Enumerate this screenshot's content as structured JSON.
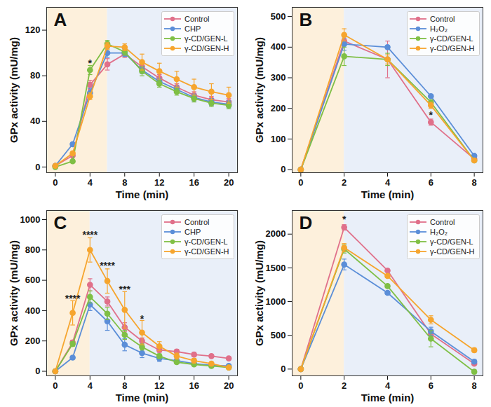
{
  "chart_data": [
    {
      "type": "line",
      "panel_label": "A",
      "x_label": "Time (min)",
      "y_label": "GPx activity (mU/mg)",
      "x": [
        0,
        2,
        4,
        6,
        8,
        10,
        12,
        14,
        16,
        18,
        20
      ],
      "xlim": [
        -1,
        21
      ],
      "xticks": [
        0,
        4,
        8,
        12,
        16,
        20
      ],
      "ylim": [
        -5,
        140
      ],
      "yticks": [
        0,
        40,
        80,
        120
      ],
      "legend": "upper right",
      "marker": "circle",
      "regions": [
        {
          "x": [
            -1,
            6
          ],
          "color": "#fdf0dc"
        },
        {
          "x": [
            6,
            21
          ],
          "color": "#e9eff9"
        }
      ],
      "series": [
        {
          "name": "Control",
          "color": "#e0708a",
          "values": [
            1,
            10,
            72,
            90,
            99,
            88,
            78,
            70,
            63,
            59,
            57
          ],
          "errors": [
            0,
            1,
            4,
            5,
            3,
            3,
            3,
            3,
            3,
            3,
            3
          ]
        },
        {
          "name": "CHP",
          "color": "#5b8ed8",
          "values": [
            1,
            20,
            65,
            100,
            100,
            85,
            75,
            68,
            61,
            57,
            55
          ],
          "errors": [
            0,
            1,
            4,
            4,
            3,
            3,
            3,
            3,
            3,
            3,
            3
          ]
        },
        {
          "name": "γ-CD/GEN-L",
          "color": "#7fbf45",
          "values": [
            0,
            5,
            85,
            108,
            101,
            84,
            73,
            66,
            60,
            56,
            54
          ],
          "errors": [
            0,
            1,
            4,
            3,
            3,
            4,
            3,
            3,
            3,
            3,
            3
          ]
        },
        {
          "name": "γ-CD/GEN-H",
          "color": "#f6a52e",
          "values": [
            1,
            12,
            62,
            106,
            105,
            92,
            84,
            77,
            70,
            66,
            63
          ],
          "errors": [
            0,
            1,
            3,
            3,
            3,
            7,
            7,
            7,
            7,
            7,
            7
          ]
        }
      ],
      "annotations": [
        {
          "x": 4,
          "y": 91,
          "text": "*"
        }
      ]
    },
    {
      "type": "line",
      "panel_label": "B",
      "x_label": "Time (min)",
      "y_label": "GPx activity (mU/mg)",
      "x": [
        0,
        2,
        4,
        6,
        8
      ],
      "xlim": [
        -0.4,
        8.4
      ],
      "xticks": [
        0,
        2,
        4,
        6,
        8
      ],
      "ylim": [
        -10,
        530
      ],
      "yticks": [
        0,
        100,
        200,
        300,
        400,
        500
      ],
      "legend": "upper right",
      "marker": "circle",
      "regions": [
        {
          "x": [
            -0.4,
            2
          ],
          "color": "#fdf0dc"
        },
        {
          "x": [
            2,
            8.4
          ],
          "color": "#e9eff9"
        }
      ],
      "series": [
        {
          "name": "Control",
          "color": "#e0708a",
          "values": [
            0,
            420,
            360,
            155,
            35
          ],
          "errors": [
            0,
            15,
            60,
            10,
            3
          ]
        },
        {
          "name": "H₂O₂",
          "color": "#5b8ed8",
          "values": [
            0,
            410,
            400,
            240,
            45
          ],
          "errors": [
            0,
            20,
            5,
            5,
            3
          ]
        },
        {
          "name": "γ-CD/GEN-L",
          "color": "#7fbf45",
          "values": [
            0,
            370,
            360,
            220,
            30
          ],
          "errors": [
            0,
            30,
            20,
            8,
            3
          ]
        },
        {
          "name": "γ-CD/GEN-H",
          "color": "#f6a52e",
          "values": [
            0,
            440,
            360,
            210,
            30
          ],
          "errors": [
            0,
            20,
            15,
            10,
            3
          ]
        }
      ],
      "annotations": [
        {
          "x": 6,
          "y": 178,
          "text": "*"
        }
      ]
    },
    {
      "type": "line",
      "panel_label": "C",
      "x_label": "Time (min)",
      "y_label": "GPx activity (mU/mg)",
      "x": [
        0,
        2,
        4,
        6,
        8,
        10,
        12,
        14,
        16,
        18,
        20
      ],
      "xlim": [
        -1,
        21
      ],
      "xticks": [
        0,
        4,
        8,
        12,
        16,
        20
      ],
      "ylim": [
        -30,
        1060
      ],
      "yticks": [
        0,
        200,
        400,
        600,
        800,
        1000
      ],
      "legend": "upper right",
      "marker": "circle",
      "regions": [
        {
          "x": [
            -1,
            4
          ],
          "color": "#fdf0dc"
        },
        {
          "x": [
            4,
            21
          ],
          "color": "#e9eff9"
        }
      ],
      "series": [
        {
          "name": "Control",
          "color": "#e0708a",
          "values": [
            0,
            190,
            570,
            460,
            290,
            200,
            140,
            130,
            110,
            100,
            85
          ],
          "errors": [
            0,
            15,
            40,
            30,
            30,
            20,
            15,
            15,
            15,
            10,
            10
          ]
        },
        {
          "name": "CHP",
          "color": "#5b8ed8",
          "values": [
            0,
            90,
            440,
            330,
            175,
            120,
            85,
            70,
            50,
            40,
            35
          ],
          "errors": [
            0,
            10,
            40,
            60,
            40,
            30,
            20,
            15,
            15,
            10,
            10
          ]
        },
        {
          "name": "γ-CD/GEN-L",
          "color": "#7fbf45",
          "values": [
            0,
            180,
            490,
            380,
            240,
            160,
            100,
            60,
            45,
            35,
            25
          ],
          "errors": [
            0,
            15,
            40,
            40,
            30,
            20,
            15,
            10,
            10,
            10,
            10
          ]
        },
        {
          "name": "γ-CD/GEN-H",
          "color": "#f6a52e",
          "values": [
            0,
            385,
            800,
            595,
            405,
            255,
            165,
            100,
            70,
            50,
            25
          ],
          "errors": [
            0,
            80,
            80,
            80,
            120,
            80,
            30,
            20,
            15,
            10,
            10
          ]
        }
      ],
      "annotations": [
        {
          "x": 2,
          "y": 480,
          "text": "****"
        },
        {
          "x": 4,
          "y": 900,
          "text": "****"
        },
        {
          "x": 6,
          "y": 695,
          "text": "****"
        },
        {
          "x": 8,
          "y": 540,
          "text": "***"
        },
        {
          "x": 10,
          "y": 345,
          "text": "*"
        }
      ]
    },
    {
      "type": "line",
      "panel_label": "D",
      "x_label": "Time (min)",
      "y_label": "GPx activity (mU/mg)",
      "x": [
        0,
        2,
        4,
        6,
        8
      ],
      "xlim": [
        -0.4,
        8.4
      ],
      "xticks": [
        0,
        2,
        4,
        6,
        8
      ],
      "ylim": [
        -100,
        2350
      ],
      "yticks": [
        0,
        500,
        1000,
        1500,
        2000
      ],
      "legend": "upper right",
      "marker": "circle",
      "regions": [
        {
          "x": [
            -0.4,
            2
          ],
          "color": "#fdf0dc"
        },
        {
          "x": [
            2,
            8.4
          ],
          "color": "#e9eff9"
        }
      ],
      "series": [
        {
          "name": "Control",
          "color": "#e0708a",
          "values": [
            0,
            2100,
            1460,
            520,
            80
          ],
          "errors": [
            0,
            40,
            20,
            40,
            10
          ]
        },
        {
          "name": "H₂O₂",
          "color": "#5b8ed8",
          "values": [
            0,
            1550,
            1130,
            560,
            110
          ],
          "errors": [
            0,
            80,
            20,
            60,
            30
          ]
        },
        {
          "name": "γ-CD/GEN-L",
          "color": "#7fbf45",
          "values": [
            0,
            1780,
            1230,
            450,
            -40
          ],
          "errors": [
            0,
            60,
            20,
            120,
            30
          ]
        },
        {
          "name": "γ-CD/GEN-H",
          "color": "#f6a52e",
          "values": [
            0,
            1800,
            1380,
            730,
            280
          ],
          "errors": [
            0,
            60,
            20,
            60,
            30
          ]
        }
      ],
      "annotations": [
        {
          "x": 2,
          "y": 2210,
          "text": "*"
        }
      ]
    }
  ]
}
